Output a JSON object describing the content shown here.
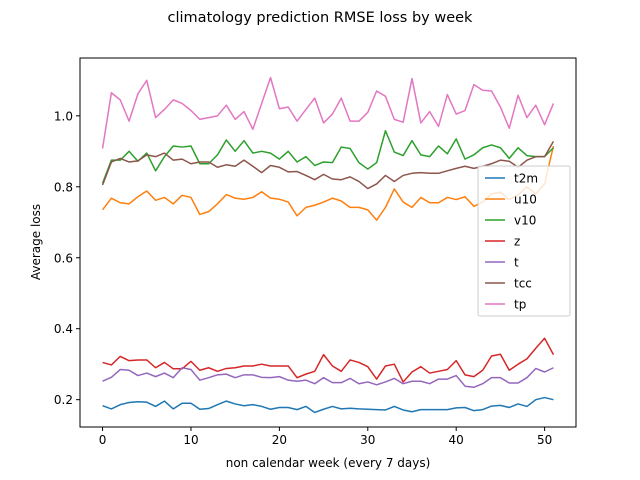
{
  "chart_data": {
    "type": "line",
    "title": "climatology prediction RMSE loss by week",
    "xlabel": "non calendar week (every 7 days)",
    "ylabel": "Average loss",
    "xlim": [
      -2.55,
      53.55
    ],
    "ylim": [
      0.123,
      1.163
    ],
    "xticks": [
      0,
      10,
      20,
      30,
      40,
      50
    ],
    "yticks": [
      0.2,
      0.4,
      0.6,
      0.8,
      1.0
    ],
    "ytick_labels": [
      "0.2",
      "0.4",
      "0.6",
      "0.8",
      "1.0"
    ],
    "grid": false,
    "legend_position": "right",
    "x": [
      0,
      1,
      2,
      3,
      4,
      5,
      6,
      7,
      8,
      9,
      10,
      11,
      12,
      13,
      14,
      15,
      16,
      17,
      18,
      19,
      20,
      21,
      22,
      23,
      24,
      25,
      26,
      27,
      28,
      29,
      30,
      31,
      32,
      33,
      34,
      35,
      36,
      37,
      38,
      39,
      40,
      41,
      42,
      43,
      44,
      45,
      46,
      47,
      48,
      49,
      50,
      51
    ],
    "series": [
      {
        "name": "t2m",
        "color": "#1f77b4",
        "values": [
          0.183,
          0.174,
          0.186,
          0.192,
          0.194,
          0.193,
          0.181,
          0.196,
          0.174,
          0.19,
          0.19,
          0.173,
          0.175,
          0.186,
          0.196,
          0.188,
          0.183,
          0.186,
          0.181,
          0.173,
          0.178,
          0.178,
          0.172,
          0.181,
          0.164,
          0.173,
          0.181,
          0.174,
          0.176,
          0.174,
          0.173,
          0.172,
          0.171,
          0.181,
          0.171,
          0.166,
          0.172,
          0.172,
          0.172,
          0.172,
          0.177,
          0.178,
          0.169,
          0.172,
          0.182,
          0.184,
          0.178,
          0.188,
          0.181,
          0.2,
          0.206,
          0.2
        ]
      },
      {
        "name": "u10",
        "color": "#ff7f0e",
        "values": [
          0.735,
          0.768,
          0.755,
          0.752,
          0.772,
          0.788,
          0.762,
          0.77,
          0.752,
          0.776,
          0.77,
          0.722,
          0.73,
          0.752,
          0.778,
          0.768,
          0.765,
          0.77,
          0.786,
          0.768,
          0.765,
          0.757,
          0.718,
          0.742,
          0.748,
          0.757,
          0.768,
          0.76,
          0.742,
          0.742,
          0.735,
          0.706,
          0.742,
          0.794,
          0.757,
          0.742,
          0.77,
          0.755,
          0.755,
          0.77,
          0.764,
          0.772,
          0.745,
          0.757,
          0.78,
          0.785,
          0.764,
          0.777,
          0.8,
          0.78,
          0.808,
          0.915
        ]
      },
      {
        "name": "v10",
        "color": "#2ca02c",
        "values": [
          0.81,
          0.875,
          0.875,
          0.9,
          0.872,
          0.895,
          0.845,
          0.885,
          0.915,
          0.912,
          0.915,
          0.865,
          0.865,
          0.89,
          0.932,
          0.9,
          0.93,
          0.895,
          0.9,
          0.895,
          0.878,
          0.9,
          0.87,
          0.885,
          0.86,
          0.87,
          0.868,
          0.912,
          0.908,
          0.868,
          0.85,
          0.868,
          0.958,
          0.898,
          0.888,
          0.93,
          0.89,
          0.885,
          0.915,
          0.893,
          0.935,
          0.878,
          0.89,
          0.91,
          0.918,
          0.91,
          0.88,
          0.91,
          0.888,
          0.885,
          0.885,
          0.91
        ]
      },
      {
        "name": "z",
        "color": "#d62728",
        "values": [
          0.305,
          0.298,
          0.322,
          0.31,
          0.312,
          0.312,
          0.29,
          0.305,
          0.287,
          0.287,
          0.308,
          0.283,
          0.29,
          0.28,
          0.288,
          0.29,
          0.295,
          0.295,
          0.3,
          0.295,
          0.295,
          0.295,
          0.262,
          0.272,
          0.28,
          0.327,
          0.295,
          0.28,
          0.312,
          0.305,
          0.293,
          0.258,
          0.295,
          0.3,
          0.25,
          0.278,
          0.293,
          0.275,
          0.28,
          0.285,
          0.31,
          0.27,
          0.265,
          0.283,
          0.323,
          0.328,
          0.283,
          0.3,
          0.315,
          0.345,
          0.373,
          0.327
        ]
      },
      {
        "name": "t",
        "color": "#9467bd",
        "values": [
          0.252,
          0.263,
          0.285,
          0.283,
          0.268,
          0.275,
          0.265,
          0.275,
          0.262,
          0.29,
          0.285,
          0.255,
          0.262,
          0.27,
          0.272,
          0.262,
          0.27,
          0.27,
          0.263,
          0.262,
          0.265,
          0.255,
          0.252,
          0.255,
          0.245,
          0.262,
          0.248,
          0.248,
          0.26,
          0.245,
          0.25,
          0.242,
          0.25,
          0.26,
          0.245,
          0.252,
          0.252,
          0.245,
          0.258,
          0.258,
          0.268,
          0.238,
          0.235,
          0.245,
          0.262,
          0.262,
          0.247,
          0.247,
          0.262,
          0.288,
          0.278,
          0.29
        ]
      },
      {
        "name": "tcc",
        "color": "#8c564b",
        "values": [
          0.805,
          0.87,
          0.88,
          0.87,
          0.873,
          0.89,
          0.885,
          0.895,
          0.875,
          0.878,
          0.865,
          0.87,
          0.87,
          0.855,
          0.862,
          0.858,
          0.875,
          0.858,
          0.84,
          0.86,
          0.855,
          0.842,
          0.843,
          0.832,
          0.82,
          0.835,
          0.822,
          0.82,
          0.828,
          0.815,
          0.795,
          0.808,
          0.832,
          0.815,
          0.832,
          0.838,
          0.84,
          0.838,
          0.838,
          0.845,
          0.852,
          0.858,
          0.852,
          0.858,
          0.865,
          0.875,
          0.872,
          0.855,
          0.875,
          0.885,
          0.885,
          0.928
        ]
      },
      {
        "name": "tp",
        "color": "#e377c2",
        "values": [
          0.908,
          1.065,
          1.045,
          0.985,
          1.062,
          1.1,
          0.995,
          1.018,
          1.045,
          1.035,
          1.015,
          0.99,
          0.995,
          1,
          1.03,
          0.99,
          1.012,
          0.962,
          1.035,
          1.108,
          1.02,
          1.025,
          0.985,
          1.018,
          1.05,
          0.98,
          1.005,
          1.05,
          0.985,
          0.985,
          1.01,
          1.07,
          1.055,
          0.99,
          0.982,
          1.105,
          0.98,
          1.012,
          0.97,
          1.06,
          1.005,
          1.015,
          1.088,
          1.072,
          1.07,
          1.025,
          0.965,
          1.058,
          0.995,
          1.03,
          0.975,
          1.035
        ]
      }
    ]
  }
}
